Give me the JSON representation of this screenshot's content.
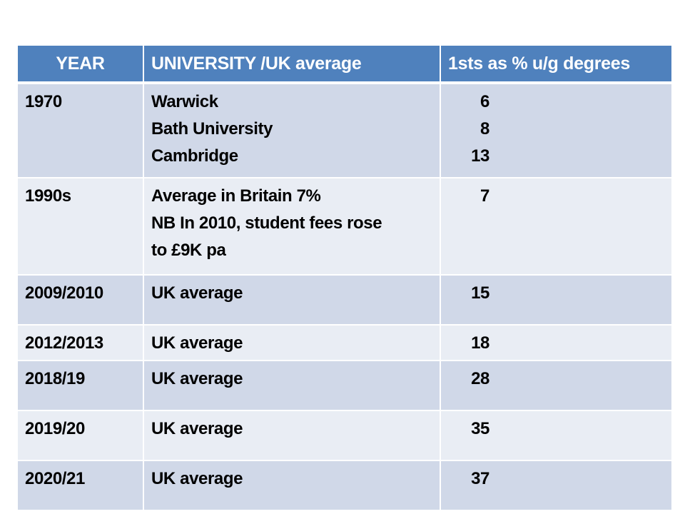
{
  "table": {
    "headers": [
      "YEAR",
      "UNIVERSITY  /UK average",
      "1sts as % u/g degrees"
    ],
    "rows": [
      {
        "year": "1970",
        "lines": [
          "Warwick",
          "Bath University",
          "Cambridge"
        ],
        "values": [
          "6",
          "8",
          "13"
        ]
      },
      {
        "year": "1990s",
        "lines": [
          "Average in Britain 7%",
          "NB  In 2010, student fees rose",
          "to £9K pa"
        ],
        "values": [
          "7"
        ]
      },
      {
        "year": "2009/2010",
        "lines": [
          "UK average"
        ],
        "values": [
          "15"
        ]
      },
      {
        "year": "2012/2013",
        "lines": [
          "UK average"
        ],
        "values": [
          "18"
        ]
      },
      {
        "year": "2018/19",
        "lines": [
          "UK average"
        ],
        "values": [
          "28"
        ]
      },
      {
        "year": "2019/20",
        "lines": [
          "UK average"
        ],
        "values": [
          "35"
        ]
      },
      {
        "year": "2020/21",
        "lines": [
          "UK average"
        ],
        "values": [
          "37"
        ]
      }
    ]
  },
  "chart_data": {
    "type": "table",
    "title": "",
    "columns": [
      "YEAR",
      "UNIVERSITY  /UK average",
      "1sts as % u/g degrees"
    ],
    "rows": [
      [
        "1970",
        "Warwick",
        6
      ],
      [
        "1970",
        "Bath University",
        8
      ],
      [
        "1970",
        "Cambridge",
        13
      ],
      [
        "1990s",
        "Average in Britain 7% (NB In 2010, student fees rose to £9K pa)",
        7
      ],
      [
        "2009/2010",
        "UK average",
        15
      ],
      [
        "2012/2013",
        "UK average",
        18
      ],
      [
        "2018/19",
        "UK average",
        28
      ],
      [
        "2019/20",
        "UK average",
        35
      ],
      [
        "2020/21",
        "UK average",
        37
      ]
    ],
    "colors": {
      "header_bg": "#4f81bd",
      "row_odd": "#d0d8e8",
      "row_even": "#e9edf4"
    }
  }
}
